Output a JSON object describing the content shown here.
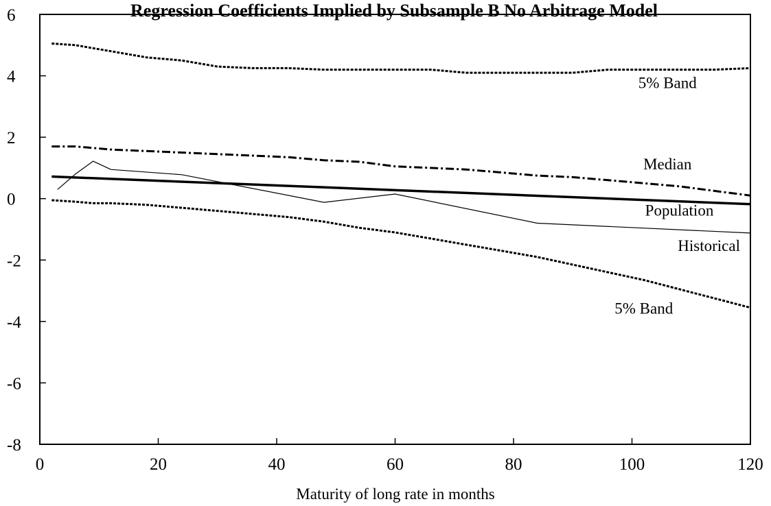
{
  "chart_data": {
    "type": "line",
    "title": "Regression Coefficients Implied by Subsample B No Arbitrage Model",
    "xlabel": "Maturity of long rate in months",
    "ylabel": "",
    "xlim": [
      0,
      120
    ],
    "ylim": [
      -8,
      6
    ],
    "xticks": [
      0,
      20,
      40,
      60,
      80,
      100,
      120
    ],
    "yticks": [
      -8,
      -6,
      -4,
      -2,
      0,
      2,
      4,
      6
    ],
    "grid": false,
    "series": [
      {
        "name": "5% Band",
        "style": "dotted",
        "x": [
          2,
          6,
          9,
          12,
          18,
          24,
          30,
          36,
          42,
          48,
          54,
          60,
          66,
          72,
          78,
          84,
          90,
          96,
          102,
          108,
          114,
          120
        ],
        "values": [
          5.05,
          5.0,
          4.9,
          4.8,
          4.6,
          4.5,
          4.3,
          4.25,
          4.25,
          4.2,
          4.2,
          4.2,
          4.2,
          4.1,
          4.1,
          4.1,
          4.1,
          4.2,
          4.2,
          4.2,
          4.2,
          4.25
        ]
      },
      {
        "name": "Median",
        "style": "dash-dot",
        "x": [
          2,
          6,
          9,
          12,
          18,
          24,
          30,
          36,
          42,
          48,
          54,
          60,
          66,
          72,
          78,
          84,
          90,
          96,
          102,
          108,
          114,
          120
        ],
        "values": [
          1.7,
          1.7,
          1.65,
          1.6,
          1.55,
          1.5,
          1.45,
          1.4,
          1.35,
          1.25,
          1.2,
          1.05,
          1.0,
          0.95,
          0.85,
          0.75,
          0.7,
          0.6,
          0.5,
          0.4,
          0.25,
          0.1
        ]
      },
      {
        "name": "Population",
        "style": "thick-solid",
        "x": [
          2,
          120
        ],
        "values": [
          0.72,
          -0.18
        ]
      },
      {
        "name": "Historical",
        "style": "thin-solid",
        "x": [
          3,
          6,
          9,
          12,
          24,
          48,
          60,
          84,
          120
        ],
        "values": [
          0.3,
          0.8,
          1.22,
          0.95,
          0.78,
          -0.12,
          0.15,
          -0.8,
          -1.12
        ]
      },
      {
        "name": "5% Band",
        "style": "dotted",
        "x": [
          2,
          6,
          9,
          12,
          18,
          24,
          30,
          36,
          42,
          48,
          54,
          60,
          66,
          72,
          78,
          84,
          90,
          96,
          102,
          108,
          114,
          120
        ],
        "values": [
          -0.05,
          -0.1,
          -0.15,
          -0.15,
          -0.2,
          -0.3,
          -0.4,
          -0.5,
          -0.6,
          -0.75,
          -0.95,
          -1.1,
          -1.3,
          -1.5,
          -1.7,
          -1.9,
          -2.15,
          -2.4,
          -2.65,
          -2.95,
          -3.25,
          -3.55
        ]
      }
    ],
    "annotations": [
      {
        "text": "5% Band",
        "x": 106,
        "y": 3.6
      },
      {
        "text": "Median",
        "x": 106,
        "y": 0.95
      },
      {
        "text": "Population",
        "x": 108,
        "y": -0.55
      },
      {
        "text": "Historical",
        "x": 113,
        "y": -1.7
      },
      {
        "text": "5% Band",
        "x": 102,
        "y": -3.75
      }
    ]
  }
}
